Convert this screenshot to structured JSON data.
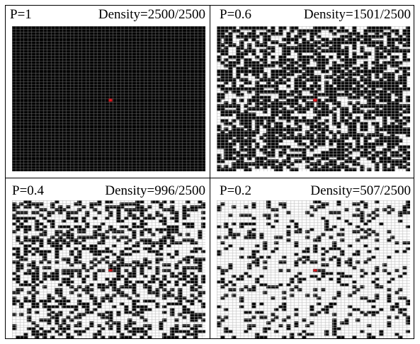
{
  "panels": [
    {
      "p_label": "P=1",
      "density_label": "Density=2500/2500",
      "p": 1.0,
      "grid": 50,
      "occupied": 2500
    },
    {
      "p_label": "P=0.6",
      "density_label": "Density=1501/2500",
      "p": 0.6,
      "grid": 50,
      "occupied": 1501
    },
    {
      "p_label": "P=0.4",
      "density_label": "Density=996/2500",
      "p": 0.4,
      "grid": 50,
      "occupied": 996
    },
    {
      "p_label": "P=0.2",
      "density_label": "Density=507/2500",
      "p": 0.2,
      "grid": 50,
      "occupied": 507
    }
  ],
  "colors": {
    "occupied": "#000000",
    "empty": "#ffffff",
    "grid_on_black": "#6e6e6e",
    "grid_on_white": "#bdbdbd",
    "center": "#e8141c"
  }
}
